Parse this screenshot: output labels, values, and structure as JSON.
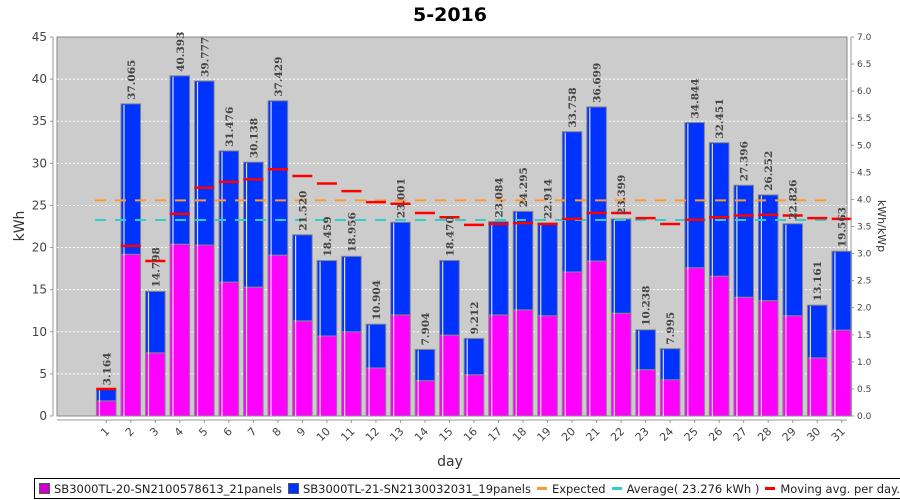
{
  "chart_data": {
    "type": "bar",
    "title": "5-2016",
    "xlabel": "day",
    "ylabel": "kWh",
    "y2label": "kWh/kWp",
    "ylim": [
      0,
      45
    ],
    "y2lim": [
      0,
      7.0
    ],
    "yticks": [
      "0",
      "5",
      "10",
      "15",
      "20",
      "25",
      "30",
      "35",
      "40",
      "45"
    ],
    "y2ticks": [
      "0.0",
      "0.5",
      "1.0",
      "1.5",
      "2.0",
      "2.5",
      "3.0",
      "3.5",
      "4.0",
      "4.5",
      "5.0",
      "5.5",
      "6.0",
      "6.5",
      "7.0"
    ],
    "grid": true,
    "stacked": true,
    "categories": [
      "1",
      "2",
      "3",
      "4",
      "5",
      "6",
      "7",
      "8",
      "9",
      "10",
      "11",
      "12",
      "13",
      "14",
      "15",
      "16",
      "17",
      "18",
      "19",
      "20",
      "21",
      "22",
      "23",
      "24",
      "25",
      "26",
      "27",
      "28",
      "29",
      "30",
      "31"
    ],
    "series": [
      {
        "name": "SB3000TL-20-SN2100578613_21panels",
        "color": "#ff00ff",
        "values": [
          1.8,
          19.2,
          7.5,
          20.4,
          20.3,
          15.9,
          15.3,
          19.1,
          11.3,
          9.5,
          10.0,
          5.7,
          12.0,
          4.2,
          9.6,
          4.9,
          12.0,
          12.6,
          11.9,
          17.1,
          18.4,
          12.2,
          5.5,
          4.3,
          17.6,
          16.6,
          14.1,
          13.7,
          11.9,
          6.9,
          10.2
        ]
      },
      {
        "name": "SB3000TL-21-SN2130032031_19panels",
        "color": "#0033ff",
        "values": [
          1.364,
          17.865,
          7.298,
          19.993,
          19.477,
          15.576,
          14.838,
          18.329,
          10.22,
          8.959,
          8.956,
          5.204,
          11.001,
          3.704,
          8.87,
          4.312,
          11.084,
          11.695,
          11.014,
          16.658,
          18.299,
          11.199,
          4.738,
          3.695,
          17.244,
          15.851,
          13.296,
          12.552,
          10.926,
          6.261,
          9.363
        ]
      }
    ],
    "totals": [
      "3.164",
      "37.065",
      "14.798",
      "40.393",
      "39.777",
      "31.476",
      "30.138",
      "37.429",
      "21.520",
      "18.459",
      "18.956",
      "10.904",
      "23.001",
      "7.904",
      "18.470",
      "9.212",
      "23.084",
      "24.295",
      "22.914",
      "33.758",
      "36.699",
      "23.399",
      "10.238",
      "7.995",
      "34.844",
      "32.451",
      "27.396",
      "26.252",
      "22.826",
      "13.161",
      "19.563"
    ],
    "expected": {
      "name": "Expected",
      "color": "#ff9933",
      "value": 25.6
    },
    "average": {
      "name": "Average( 23.276 kWh )",
      "color": "#33cccc",
      "value": 23.276
    },
    "moving_avg": {
      "name": "Moving avg. per day.",
      "color": "#ff0000",
      "values": [
        3.2,
        20.2,
        18.4,
        24.0,
        27.1,
        27.8,
        28.1,
        29.3,
        28.5,
        27.6,
        26.7,
        25.4,
        25.2,
        24.1,
        23.6,
        22.7,
        22.8,
        22.9,
        22.8,
        23.4,
        24.1,
        24.1,
        23.5,
        22.8,
        23.3,
        23.6,
        23.8,
        23.9,
        23.8,
        23.5,
        23.4
      ]
    },
    "legend_position": "bottom"
  }
}
